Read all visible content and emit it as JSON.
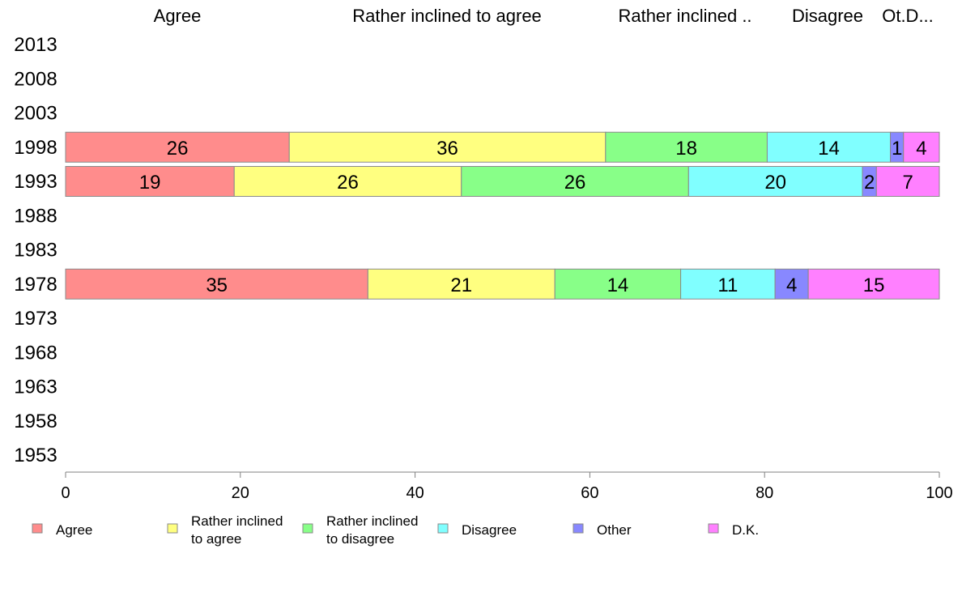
{
  "chart_data": {
    "type": "bar",
    "orientation": "horizontal",
    "stacked": true,
    "years": [
      "2013",
      "2008",
      "2003",
      "1998",
      "1993",
      "1988",
      "1983",
      "1978",
      "1973",
      "1968",
      "1963",
      "1958",
      "1953"
    ],
    "column_headers": [
      "Agree",
      "Rather inclined to agree",
      "Rather inclined ..",
      "Disagree",
      "Ot.D..."
    ],
    "series": [
      {
        "name": "Agree",
        "legend": [
          "Agree"
        ],
        "color": "#FF8C8C",
        "values": {
          "1998": 26,
          "1993": 19,
          "1978": 35
        },
        "widths": {
          "1998": 25.6,
          "1993": 19.3,
          "1978": 34.6
        }
      },
      {
        "name": "Rather inclined to agree",
        "legend": [
          "Rather inclined",
          "to agree"
        ],
        "color": "#FFFF80",
        "values": {
          "1998": 36,
          "1993": 26,
          "1978": 21
        },
        "widths": {
          "1998": 36.2,
          "1993": 26.0,
          "1978": 21.4
        }
      },
      {
        "name": "Rather inclined to disagree",
        "legend": [
          "Rather inclined",
          "to disagree"
        ],
        "color": "#88FF88",
        "values": {
          "1998": 18,
          "1993": 26,
          "1978": 14
        },
        "widths": {
          "1998": 18.5,
          "1993": 26.0,
          "1978": 14.4
        }
      },
      {
        "name": "Disagree",
        "legend": [
          "Disagree"
        ],
        "color": "#80FFFF",
        "values": {
          "1998": 14,
          "1993": 20,
          "1978": 11
        },
        "widths": {
          "1998": 14.1,
          "1993": 19.9,
          "1978": 10.8
        }
      },
      {
        "name": "Other",
        "legend": [
          "Other"
        ],
        "color": "#8888FF",
        "values": {
          "1998": 1,
          "1993": 2,
          "1978": 4
        },
        "widths": {
          "1998": 1.5,
          "1993": 1.6,
          "1978": 3.8
        }
      },
      {
        "name": "D.K.",
        "legend": [
          "D.K."
        ],
        "color": "#FF80FF",
        "values": {
          "1998": 4,
          "1993": 7,
          "1978": 15
        },
        "widths": {
          "1998": 4.1,
          "1993": 7.2,
          "1978": 15.0
        }
      }
    ],
    "xlim": [
      0,
      100
    ],
    "xticks": [
      0,
      20,
      40,
      60,
      80,
      100
    ],
    "grid": false,
    "legend_position": "bottom"
  }
}
